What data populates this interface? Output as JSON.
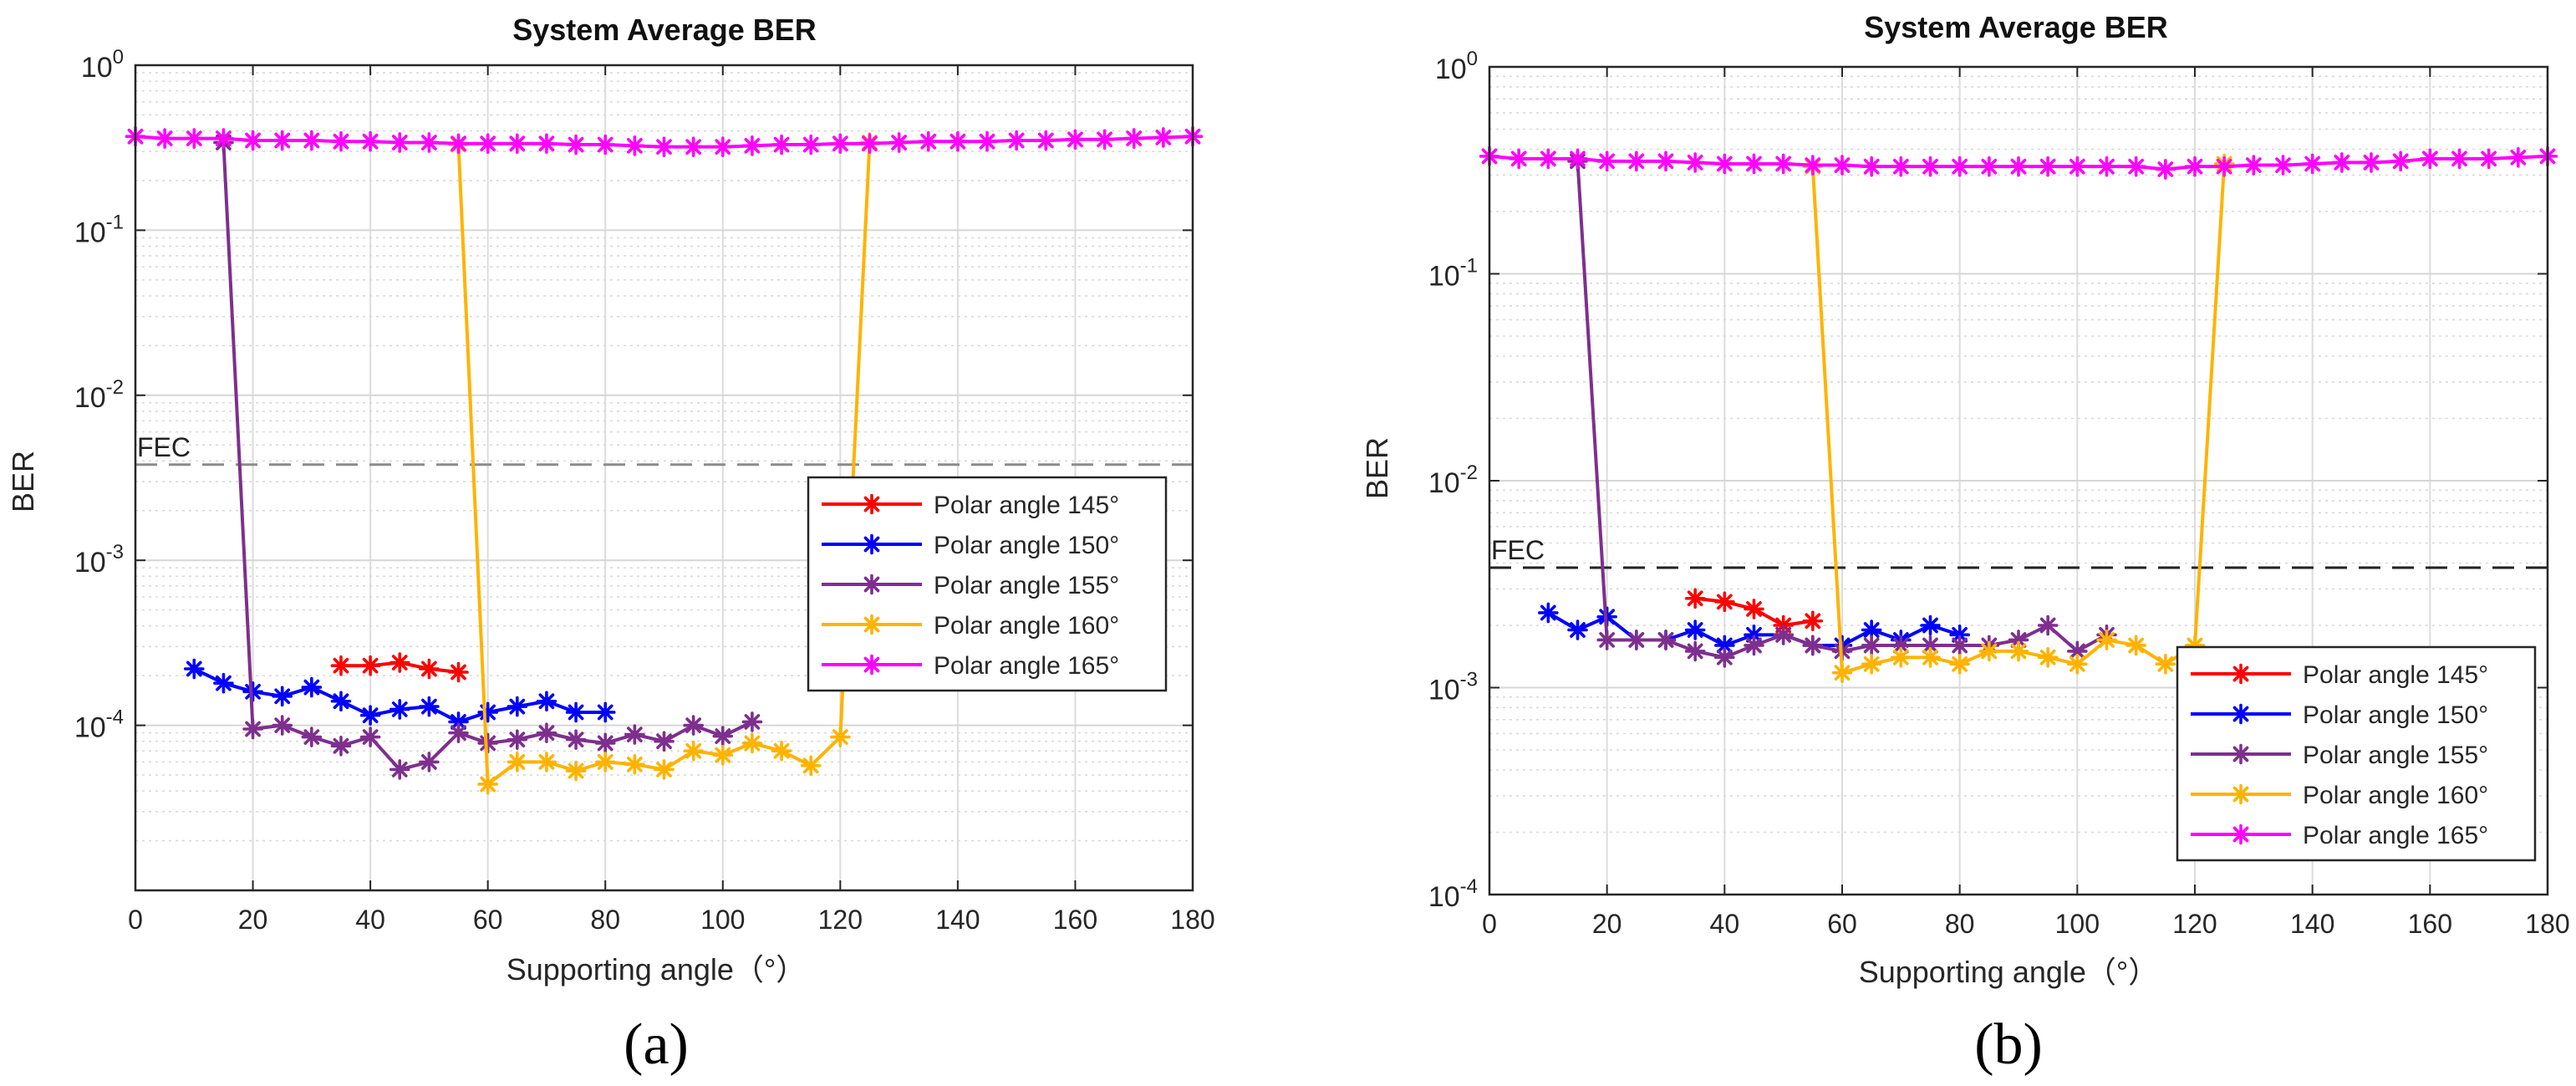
{
  "chart_data": [
    {
      "id": "a",
      "type": "line",
      "caption": "(a)",
      "title": "System Average BER",
      "xlabel": "Supporting angle（°）",
      "ylabel": "BER",
      "xlim": [
        0,
        180
      ],
      "ylim": [
        1e-05,
        1
      ],
      "yscale": "log",
      "xticks": [
        0,
        20,
        40,
        60,
        80,
        100,
        120,
        140,
        160,
        180
      ],
      "xtick_labels": [
        "0",
        "20",
        "40",
        "60",
        "80",
        "100",
        "120",
        "140",
        "160",
        "180"
      ],
      "yticks": [
        1,
        0.1,
        0.01,
        0.001,
        0.0001
      ],
      "ytick_labels": [
        [
          "10",
          "0"
        ],
        [
          "10",
          "-1"
        ],
        [
          "10",
          "-2"
        ],
        [
          "10",
          "-3"
        ],
        [
          "10",
          "-4"
        ]
      ],
      "grid": true,
      "legend_position": "middle-right",
      "fec": {
        "label": "FEC",
        "value": 0.0038
      },
      "series": [
        {
          "name": "Polar angle 145°",
          "color": "#ff0000",
          "x": [
            35,
            40,
            45,
            50,
            55
          ],
          "y": [
            0.00023,
            0.00023,
            0.00024,
            0.00022,
            0.00021
          ]
        },
        {
          "name": "Polar angle 150°",
          "color": "#0000ff",
          "x": [
            10,
            15,
            20,
            25,
            30,
            35,
            40,
            45,
            50,
            55,
            60,
            65,
            70,
            75,
            80
          ],
          "y": [
            0.00022,
            0.00018,
            0.00016,
            0.00015,
            0.00017,
            0.00014,
            0.000115,
            0.000125,
            0.00013,
            0.000105,
            0.00012,
            0.00013,
            0.00014,
            0.00012,
            0.00012
          ]
        },
        {
          "name": "Polar angle 155°",
          "color": "#7e2f8e",
          "x": [
            15,
            20,
            25,
            30,
            35,
            40,
            45,
            50,
            55,
            60,
            65,
            70,
            75,
            80,
            85,
            90,
            95,
            100,
            105
          ],
          "y": [
            0.34,
            9.5e-05,
            0.0001,
            8.5e-05,
            7.5e-05,
            8.5e-05,
            5.4e-05,
            6e-05,
            9e-05,
            7.8e-05,
            8.2e-05,
            9e-05,
            8.2e-05,
            7.8e-05,
            8.8e-05,
            8e-05,
            0.0001,
            8.6e-05,
            0.000105
          ]
        },
        {
          "name": "Polar angle 160°",
          "color": "#ffb300",
          "x": [
            55,
            60,
            65,
            70,
            75,
            80,
            85,
            90,
            95,
            100,
            105,
            110,
            115,
            120,
            125
          ],
          "y": [
            0.33,
            4.4e-05,
            6e-05,
            6e-05,
            5.3e-05,
            6e-05,
            5.8e-05,
            5.4e-05,
            7e-05,
            6.6e-05,
            7.8e-05,
            7e-05,
            5.7e-05,
            8.5e-05,
            0.34
          ]
        },
        {
          "name": "Polar angle 165°",
          "color": "#ff00ff",
          "x": [
            0,
            5,
            10,
            15,
            20,
            25,
            30,
            35,
            40,
            45,
            50,
            55,
            60,
            65,
            70,
            75,
            80,
            85,
            90,
            95,
            100,
            105,
            110,
            115,
            120,
            125,
            130,
            135,
            140,
            145,
            150,
            155,
            160,
            165,
            170,
            175,
            180
          ],
          "y": [
            0.37,
            0.36,
            0.36,
            0.36,
            0.35,
            0.35,
            0.35,
            0.345,
            0.345,
            0.34,
            0.34,
            0.335,
            0.335,
            0.335,
            0.335,
            0.33,
            0.33,
            0.325,
            0.32,
            0.32,
            0.32,
            0.325,
            0.33,
            0.33,
            0.335,
            0.335,
            0.34,
            0.345,
            0.345,
            0.345,
            0.35,
            0.35,
            0.355,
            0.355,
            0.36,
            0.365,
            0.37
          ]
        }
      ]
    },
    {
      "id": "b",
      "type": "line",
      "caption": "(b)",
      "title": "System Average BER",
      "xlabel": "Supporting angle（°）",
      "ylabel": "BER",
      "xlim": [
        0,
        180
      ],
      "ylim": [
        0.0001,
        1
      ],
      "yscale": "log",
      "xticks": [
        0,
        20,
        40,
        60,
        80,
        100,
        120,
        140,
        160,
        180
      ],
      "xtick_labels": [
        "0",
        "20",
        "40",
        "60",
        "80",
        "100",
        "120",
        "140",
        "160",
        "180"
      ],
      "yticks": [
        1,
        0.1,
        0.01,
        0.001,
        0.0001
      ],
      "ytick_labels": [
        [
          "10",
          "0"
        ],
        [
          "10",
          "-1"
        ],
        [
          "10",
          "-2"
        ],
        [
          "10",
          "-3"
        ],
        [
          "10",
          "-4"
        ]
      ],
      "grid": true,
      "legend_position": "bottom-right",
      "fec": {
        "label": "FEC",
        "value": 0.0038
      },
      "series": [
        {
          "name": "Polar angle 145°",
          "color": "#ff0000",
          "x": [
            35,
            40,
            45,
            50,
            55
          ],
          "y": [
            0.0027,
            0.0026,
            0.0024,
            0.002,
            0.0021
          ]
        },
        {
          "name": "Polar angle 150°",
          "color": "#0000ff",
          "x": [
            10,
            15,
            20,
            25,
            30,
            35,
            40,
            45,
            50,
            55,
            60,
            65,
            70,
            75,
            80
          ],
          "y": [
            0.0023,
            0.0019,
            0.0022,
            0.0017,
            0.0017,
            0.0019,
            0.0016,
            0.0018,
            0.0018,
            0.0016,
            0.0016,
            0.0019,
            0.0017,
            0.002,
            0.0018
          ]
        },
        {
          "name": "Polar angle 155°",
          "color": "#7e2f8e",
          "x": [
            15,
            20,
            25,
            30,
            35,
            40,
            45,
            50,
            55,
            60,
            65,
            70,
            75,
            80,
            85,
            90,
            95,
            100,
            105
          ],
          "y": [
            0.35,
            0.0017,
            0.0017,
            0.0017,
            0.0015,
            0.0014,
            0.0016,
            0.0018,
            0.0016,
            0.0015,
            0.0016,
            0.0016,
            0.0016,
            0.0016,
            0.0016,
            0.0017,
            0.002,
            0.0015,
            0.0018
          ]
        },
        {
          "name": "Polar angle 160°",
          "color": "#ffb300",
          "x": [
            55,
            60,
            65,
            70,
            75,
            80,
            85,
            90,
            95,
            100,
            105,
            110,
            115,
            120,
            125
          ],
          "y": [
            0.33,
            0.00118,
            0.0013,
            0.0014,
            0.0014,
            0.0013,
            0.0015,
            0.0015,
            0.0014,
            0.0013,
            0.0017,
            0.0016,
            0.0013,
            0.0016,
            0.34
          ]
        },
        {
          "name": "Polar angle 165°",
          "color": "#ff00ff",
          "x": [
            0,
            5,
            10,
            15,
            20,
            25,
            30,
            35,
            40,
            45,
            50,
            55,
            60,
            65,
            70,
            75,
            80,
            85,
            90,
            95,
            100,
            105,
            110,
            115,
            120,
            125,
            130,
            135,
            140,
            145,
            150,
            155,
            160,
            165,
            170,
            175,
            180
          ],
          "y": [
            0.37,
            0.36,
            0.36,
            0.36,
            0.35,
            0.35,
            0.35,
            0.345,
            0.34,
            0.34,
            0.34,
            0.335,
            0.335,
            0.33,
            0.33,
            0.33,
            0.33,
            0.33,
            0.33,
            0.33,
            0.33,
            0.33,
            0.33,
            0.32,
            0.33,
            0.33,
            0.335,
            0.335,
            0.34,
            0.345,
            0.345,
            0.35,
            0.36,
            0.36,
            0.36,
            0.365,
            0.37
          ]
        }
      ]
    }
  ]
}
